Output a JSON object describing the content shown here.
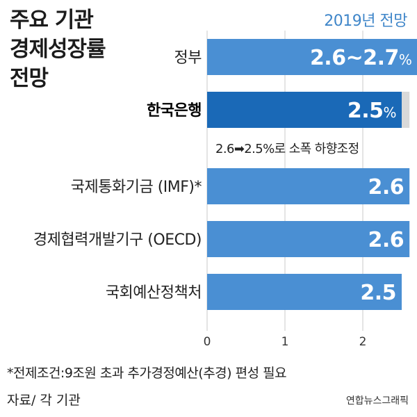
{
  "chart_data": {
    "type": "bar",
    "orientation": "horizontal",
    "title": "주요 기관 경제성장률 전망",
    "title_lines": [
      "주요 기관",
      "경제성장률",
      "전망"
    ],
    "subtitle": "2019년 전망",
    "categories": [
      "정부",
      "한국은행",
      "국제통화기금 (IMF)*",
      "경제협력개발기구 (OECD)",
      "국회예산정책처"
    ],
    "values": [
      2.7,
      2.5,
      2.6,
      2.6,
      2.5
    ],
    "value_labels": [
      "2.6~2.7",
      "2.5",
      "2.6",
      "2.6",
      "2.5"
    ],
    "value_units": [
      "%",
      "%",
      "",
      "",
      ""
    ],
    "previous_values": [
      null,
      2.6,
      null,
      null,
      null
    ],
    "highlight_index": 1,
    "xlim": [
      0,
      2.8
    ],
    "xticks": [
      "0",
      "1",
      "2"
    ],
    "grid": true,
    "annotation": "2.6➡2.5%로 소폭 하향조정",
    "footnote": "*전제조건:9조원 초과 추가경정예산(추경) 편성 필요",
    "source": "자료/ 각 기관",
    "credit": "연합뉴스그래픽",
    "colors": {
      "bar": "#4a8fd3",
      "highlight_bar": "#1a69b7",
      "previous_bar": "#d9d9d9",
      "grid": "#c9c9c9",
      "subtitle": "#3f86c9"
    }
  }
}
